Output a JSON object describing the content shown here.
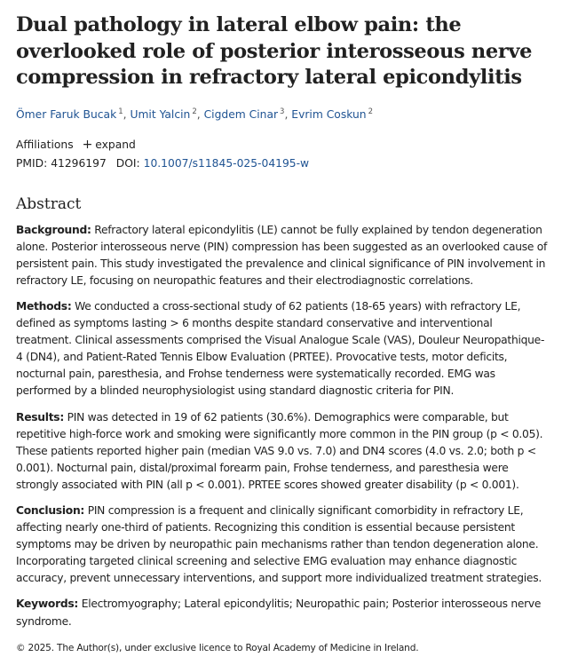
{
  "article": {
    "title": "Dual pathology in lateral elbow pain: the overlooked role of posterior interosseous nerve compression in refractory lateral epicondylitis",
    "authors": [
      {
        "name": "Ömer Faruk Bucak",
        "aff": "1"
      },
      {
        "name": "Umit Yalcin",
        "aff": "2"
      },
      {
        "name": "Cigdem Cinar",
        "aff": "3"
      },
      {
        "name": "Evrim Coskun",
        "aff": "2"
      }
    ],
    "affiliations_label": "Affiliations",
    "expand_label": "expand",
    "pmid_label": "PMID:",
    "pmid": "41296197",
    "doi_label": "DOI:",
    "doi": "10.1007/s11845-025-04195-w"
  },
  "abstract": {
    "heading": "Abstract",
    "background_label": "Background:",
    "background": "Refractory lateral epicondylitis (LE) cannot be fully explained by tendon degeneration alone. Posterior interosseous nerve (PIN) compression has been suggested as an overlooked cause of persistent pain. This study investigated the prevalence and clinical significance of PIN involvement in refractory LE, focusing on neuropathic features and their electrodiagnostic correlations.",
    "methods_label": "Methods:",
    "methods": "We conducted a cross-sectional study of 62 patients (18-65 years) with refractory LE, defined as symptoms lasting > 6 months despite standard conservative and interventional treatment. Clinical assessments comprised the Visual Analogue Scale (VAS), Douleur Neuropathique-4 (DN4), and Patient-Rated Tennis Elbow Evaluation (PRTEE). Provocative tests, motor deficits, nocturnal pain, paresthesia, and Frohse tenderness were systematically recorded. EMG was performed by a blinded neurophysiologist using standard diagnostic criteria for PIN.",
    "results_label": "Results:",
    "results": "PIN was detected in 19 of 62 patients (30.6%). Demographics were comparable, but repetitive high-force work and smoking were significantly more common in the PIN group (p < 0.05). These patients reported higher pain (median VAS 9.0 vs. 7.0) and DN4 scores (4.0 vs. 2.0; both p < 0.001). Nocturnal pain, distal/proximal forearm pain, Frohse tenderness, and paresthesia were strongly associated with PIN (all p < 0.001). PRTEE scores showed greater disability (p < 0.001).",
    "conclusion_label": "Conclusion:",
    "conclusion": "PIN compression is a frequent and clinically significant comorbidity in refractory LE, affecting nearly one-third of patients. Recognizing this condition is essential because persistent symptoms may be driven by neuropathic pain mechanisms rather than tendon degeneration alone. Incorporating targeted clinical screening and selective EMG evaluation may enhance diagnostic accuracy, prevent unnecessary interventions, and support more individualized treatment strategies.",
    "keywords_label": "Keywords:",
    "keywords": "Electromyography; Lateral epicondylitis; Neuropathic pain; Posterior interosseous nerve syndrome."
  },
  "footer": {
    "copyright": "© 2025. The Author(s), under exclusive licence to Royal Academy of Medicine in Ireland."
  }
}
